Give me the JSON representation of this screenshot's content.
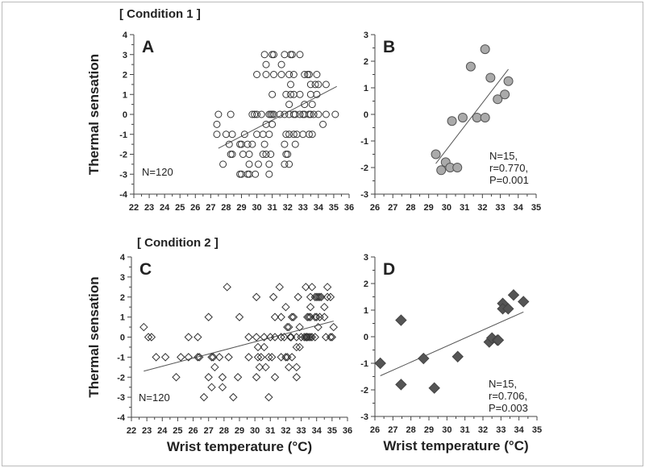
{
  "chart_data": [
    {
      "panel": "A",
      "condition": "[ Condition 1 ]",
      "type": "scatter",
      "marker": "open-circle",
      "marker_fill": "none",
      "marker_stroke": "#333333",
      "xlim": [
        22,
        36
      ],
      "ylim": [
        -4,
        4
      ],
      "xticks": [
        22,
        23,
        24,
        25,
        26,
        27,
        28,
        29,
        30,
        31,
        32,
        33,
        34,
        35,
        36
      ],
      "yticks": [
        -4,
        -3,
        -2,
        -1,
        0,
        1,
        2,
        3,
        4
      ],
      "ylabel": "Thermal sensation",
      "xlabel": "",
      "annotations": [
        "N=120"
      ],
      "fit_line": [
        [
          27.5,
          -1.7
        ],
        [
          35.2,
          1.4
        ]
      ],
      "points": [
        [
          30.5,
          3
        ],
        [
          31.0,
          3
        ],
        [
          31.1,
          3
        ],
        [
          31.8,
          3
        ],
        [
          32.2,
          3
        ],
        [
          32.3,
          3
        ],
        [
          32.8,
          3
        ],
        [
          30.6,
          2.5
        ],
        [
          31.6,
          2.5
        ],
        [
          30.0,
          2
        ],
        [
          30.6,
          2
        ],
        [
          31.1,
          2
        ],
        [
          31.6,
          2
        ],
        [
          32.1,
          2
        ],
        [
          32.4,
          2
        ],
        [
          33.1,
          2
        ],
        [
          33.3,
          2
        ],
        [
          33.4,
          2
        ],
        [
          33.9,
          2
        ],
        [
          32.2,
          1.5
        ],
        [
          33.5,
          1.5
        ],
        [
          33.8,
          1.5
        ],
        [
          34.0,
          1.5
        ],
        [
          34.5,
          1.5
        ],
        [
          31.0,
          1
        ],
        [
          31.9,
          1
        ],
        [
          32.2,
          1
        ],
        [
          32.4,
          1
        ],
        [
          32.8,
          1
        ],
        [
          33.5,
          1
        ],
        [
          33.9,
          1
        ],
        [
          32.1,
          0.5
        ],
        [
          33.1,
          0.5
        ],
        [
          33.6,
          0.5
        ],
        [
          27.5,
          0
        ],
        [
          28.3,
          0
        ],
        [
          29.7,
          0
        ],
        [
          29.85,
          0
        ],
        [
          30.0,
          0
        ],
        [
          30.3,
          0
        ],
        [
          30.8,
          0
        ],
        [
          30.9,
          0
        ],
        [
          31.0,
          0
        ],
        [
          31.1,
          0
        ],
        [
          31.5,
          0
        ],
        [
          31.8,
          0
        ],
        [
          32.1,
          0
        ],
        [
          32.4,
          0
        ],
        [
          32.5,
          0
        ],
        [
          32.8,
          0
        ],
        [
          33.0,
          0
        ],
        [
          33.1,
          0
        ],
        [
          33.4,
          0
        ],
        [
          33.5,
          0
        ],
        [
          33.7,
          0
        ],
        [
          34.0,
          0
        ],
        [
          34.5,
          0
        ],
        [
          35.1,
          0
        ],
        [
          27.4,
          -0.5
        ],
        [
          30.6,
          -0.5
        ],
        [
          31.0,
          -0.5
        ],
        [
          34.3,
          -0.5
        ],
        [
          27.4,
          -1
        ],
        [
          28.0,
          -1
        ],
        [
          28.4,
          -1
        ],
        [
          29.2,
          -1
        ],
        [
          30.0,
          -1
        ],
        [
          30.4,
          -1
        ],
        [
          30.8,
          -1
        ],
        [
          31.9,
          -1
        ],
        [
          32.1,
          -1
        ],
        [
          32.4,
          -1
        ],
        [
          32.6,
          -1
        ],
        [
          33.0,
          -1
        ],
        [
          33.4,
          -1
        ],
        [
          33.6,
          -1
        ],
        [
          28.2,
          -1.5
        ],
        [
          28.9,
          -1.5
        ],
        [
          29.0,
          -1.5
        ],
        [
          29.4,
          -1.5
        ],
        [
          29.7,
          -1.5
        ],
        [
          30.5,
          -1.5
        ],
        [
          31.8,
          -1.5
        ],
        [
          32.5,
          -1.5
        ],
        [
          28.3,
          -2
        ],
        [
          28.4,
          -2
        ],
        [
          29.1,
          -2
        ],
        [
          29.5,
          -2
        ],
        [
          30.4,
          -2
        ],
        [
          30.6,
          -2
        ],
        [
          30.9,
          -2
        ],
        [
          31.9,
          -2
        ],
        [
          32.0,
          -2
        ],
        [
          27.8,
          -2.5
        ],
        [
          29.5,
          -2.5
        ],
        [
          30.1,
          -2.5
        ],
        [
          30.8,
          -2.5
        ],
        [
          31.8,
          -2.5
        ],
        [
          32.1,
          -2.5
        ],
        [
          28.9,
          -3
        ],
        [
          29.0,
          -3
        ],
        [
          29.4,
          -3
        ],
        [
          29.5,
          -3
        ],
        [
          29.9,
          -3
        ],
        [
          30.8,
          -3
        ]
      ]
    },
    {
      "panel": "B",
      "type": "scatter",
      "marker": "filled-circle",
      "marker_fill": "#aaaaaa",
      "marker_stroke": "#555555",
      "xlim": [
        26,
        35
      ],
      "ylim": [
        -3,
        3
      ],
      "xticks": [
        26,
        27,
        28,
        29,
        30,
        31,
        32,
        33,
        34,
        35
      ],
      "yticks": [
        -3,
        -2,
        -1,
        0,
        1,
        2,
        3
      ],
      "ylabel": "",
      "xlabel": "",
      "annotations": [
        "N=15,",
        "r=0.770,",
        "P=0.001"
      ],
      "fit_line": [
        [
          29.4,
          -1.85
        ],
        [
          33.45,
          1.7
        ]
      ],
      "points": [
        [
          29.4,
          -1.5
        ],
        [
          29.7,
          -2.1
        ],
        [
          29.95,
          -1.8
        ],
        [
          30.2,
          -2.0
        ],
        [
          30.6,
          -2.0
        ],
        [
          30.3,
          -0.25
        ],
        [
          30.9,
          -0.12
        ],
        [
          31.35,
          1.8
        ],
        [
          31.7,
          -0.12
        ],
        [
          32.15,
          -0.12
        ],
        [
          32.15,
          2.45
        ],
        [
          32.45,
          1.38
        ],
        [
          32.85,
          0.57
        ],
        [
          33.25,
          0.75
        ],
        [
          33.45,
          1.25
        ]
      ]
    },
    {
      "panel": "C",
      "condition": "[ Condition 2 ]",
      "type": "scatter",
      "marker": "open-diamond",
      "marker_fill": "none",
      "marker_stroke": "#333333",
      "xlim": [
        22,
        36
      ],
      "ylim": [
        -4,
        4
      ],
      "xticks": [
        22,
        23,
        24,
        25,
        26,
        27,
        28,
        29,
        30,
        31,
        32,
        33,
        34,
        35,
        36
      ],
      "yticks": [
        -4,
        -3,
        -2,
        -1,
        0,
        1,
        2,
        3,
        4
      ],
      "ylabel": "Thermal sensation",
      "xlabel": "Wrist temperature (°C)",
      "annotations": [
        "N=120"
      ],
      "fit_line": [
        [
          22.8,
          -1.7
        ],
        [
          35.1,
          0.8
        ]
      ],
      "points": [
        [
          28.2,
          2.5
        ],
        [
          31.6,
          2.5
        ],
        [
          33.3,
          2.5
        ],
        [
          33.7,
          2.5
        ],
        [
          34.7,
          2.5
        ],
        [
          30.1,
          2
        ],
        [
          31.2,
          2
        ],
        [
          32.8,
          2
        ],
        [
          33.6,
          2
        ],
        [
          33.9,
          2
        ],
        [
          34.0,
          2
        ],
        [
          34.1,
          2
        ],
        [
          34.2,
          2
        ],
        [
          34.3,
          2
        ],
        [
          34.7,
          2
        ],
        [
          34.9,
          2
        ],
        [
          32.0,
          1.5
        ],
        [
          33.6,
          1.5
        ],
        [
          34.5,
          1.5
        ],
        [
          27.0,
          1
        ],
        [
          29.0,
          1
        ],
        [
          31.3,
          1
        ],
        [
          31.7,
          1
        ],
        [
          32.4,
          1
        ],
        [
          32.5,
          1
        ],
        [
          33.4,
          1
        ],
        [
          33.5,
          1
        ],
        [
          33.6,
          1
        ],
        [
          33.9,
          1
        ],
        [
          34.0,
          1
        ],
        [
          34.2,
          1
        ],
        [
          34.5,
          1
        ],
        [
          22.8,
          0.5
        ],
        [
          32.1,
          0.5
        ],
        [
          32.2,
          0.5
        ],
        [
          32.9,
          0.5
        ],
        [
          34.1,
          0.5
        ],
        [
          35.1,
          0.5
        ],
        [
          23.1,
          0
        ],
        [
          23.3,
          0
        ],
        [
          25.7,
          0
        ],
        [
          26.3,
          0
        ],
        [
          29.6,
          0
        ],
        [
          30.1,
          0
        ],
        [
          30.6,
          0
        ],
        [
          31.0,
          0
        ],
        [
          31.3,
          0
        ],
        [
          31.7,
          0
        ],
        [
          31.9,
          0
        ],
        [
          32.3,
          0
        ],
        [
          32.35,
          0
        ],
        [
          32.7,
          0
        ],
        [
          33.0,
          0
        ],
        [
          33.2,
          0
        ],
        [
          33.3,
          0
        ],
        [
          33.35,
          0
        ],
        [
          33.4,
          0
        ],
        [
          33.5,
          0
        ],
        [
          33.6,
          0
        ],
        [
          33.7,
          0
        ],
        [
          33.9,
          0
        ],
        [
          34.6,
          0
        ],
        [
          34.9,
          0
        ],
        [
          35.0,
          0
        ],
        [
          30.2,
          -0.5
        ],
        [
          30.6,
          -0.5
        ],
        [
          32.7,
          -0.5
        ],
        [
          32.9,
          -0.5
        ],
        [
          23.6,
          -1
        ],
        [
          24.2,
          -1
        ],
        [
          25.2,
          -1
        ],
        [
          25.7,
          -1
        ],
        [
          26.3,
          -1
        ],
        [
          26.4,
          -1
        ],
        [
          27.2,
          -1
        ],
        [
          27.3,
          -1
        ],
        [
          27.7,
          -1
        ],
        [
          28.3,
          -1
        ],
        [
          29.6,
          -1
        ],
        [
          30.2,
          -1
        ],
        [
          30.4,
          -1
        ],
        [
          30.9,
          -1
        ],
        [
          31.1,
          -1
        ],
        [
          31.7,
          -1
        ],
        [
          32.0,
          -1
        ],
        [
          32.1,
          -1
        ],
        [
          32.4,
          -1
        ],
        [
          27.4,
          -1.5
        ],
        [
          30.3,
          -1.5
        ],
        [
          30.7,
          -1.5
        ],
        [
          32.2,
          -1.5
        ],
        [
          32.7,
          -1.5
        ],
        [
          24.9,
          -2
        ],
        [
          27.0,
          -2
        ],
        [
          27.9,
          -2
        ],
        [
          28.9,
          -2
        ],
        [
          30.1,
          -2
        ],
        [
          31.3,
          -2
        ],
        [
          32.7,
          -2
        ],
        [
          27.2,
          -2.5
        ],
        [
          27.9,
          -2.5
        ],
        [
          26.7,
          -3
        ],
        [
          28.6,
          -3
        ],
        [
          30.9,
          -3
        ]
      ]
    },
    {
      "panel": "D",
      "type": "scatter",
      "marker": "filled-diamond",
      "marker_fill": "#555555",
      "marker_stroke": "#444444",
      "xlim": [
        26,
        35
      ],
      "ylim": [
        -3,
        3
      ],
      "xticks": [
        26,
        27,
        28,
        29,
        30,
        31,
        32,
        33,
        34,
        35
      ],
      "yticks": [
        -3,
        -2,
        -1,
        0,
        1,
        2,
        3
      ],
      "ylabel": "",
      "xlabel": "Wrist temperature (°C)",
      "annotations": [
        "N=15,",
        "r=0.706,",
        "P=0.003"
      ],
      "fit_line": [
        [
          26.3,
          -1.47
        ],
        [
          34.25,
          0.93
        ]
      ],
      "points": [
        [
          26.3,
          -1.0
        ],
        [
          27.45,
          0.62
        ],
        [
          27.45,
          -1.8
        ],
        [
          28.7,
          -0.82
        ],
        [
          29.3,
          -1.93
        ],
        [
          30.6,
          -0.75
        ],
        [
          32.35,
          -0.2
        ],
        [
          32.5,
          -0.05
        ],
        [
          32.8,
          -0.13
        ],
        [
          32.85,
          -0.13
        ],
        [
          33.1,
          1.25
        ],
        [
          33.1,
          1.05
        ],
        [
          33.4,
          1.05
        ],
        [
          33.7,
          1.57
        ],
        [
          34.25,
          1.32
        ]
      ]
    }
  ]
}
